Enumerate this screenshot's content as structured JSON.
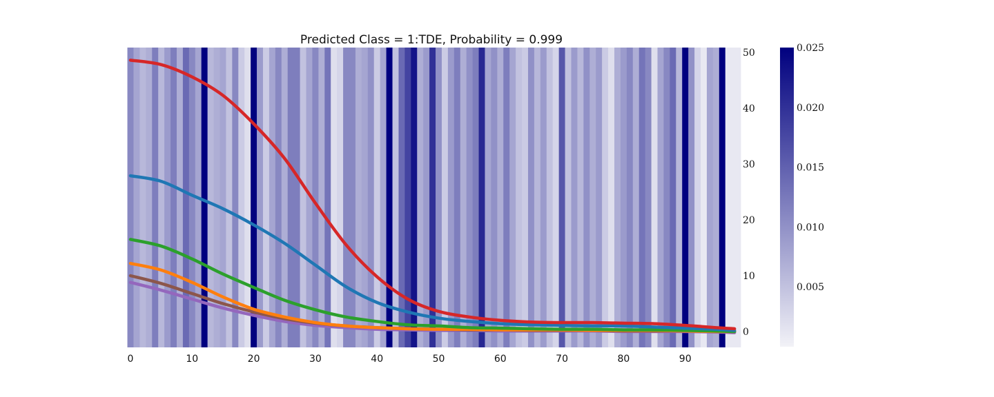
{
  "chart_data": {
    "type": "line",
    "title": "Predicted Class = 1:TDE, Probability = 0.999",
    "xlabel": "",
    "ylabel": "",
    "xlim": [
      -1,
      99
    ],
    "ylim": [
      -2.8,
      51
    ],
    "x_ticks": [
      0,
      10,
      20,
      30,
      40,
      50,
      60,
      70,
      80,
      90
    ],
    "y_ticks": [
      0,
      10,
      20,
      30,
      40,
      50
    ],
    "y_axis_side": "right",
    "grid": false,
    "legend": "none",
    "background_heatmap": {
      "description": "per-timestep attention weights shown as vertical bands",
      "colormap": "white-to-navy",
      "colormap_colors": [
        "#f2f2f7",
        "#00007f"
      ],
      "vmin": 0.0,
      "vmax": 0.025,
      "x_start": 0,
      "values": [
        0.011,
        0.008,
        0.006,
        0.007,
        0.012,
        0.006,
        0.009,
        0.012,
        0.007,
        0.014,
        0.011,
        0.008,
        0.025,
        0.006,
        0.007,
        0.008,
        0.005,
        0.011,
        0.004,
        0.002,
        0.025,
        0.009,
        0.004,
        0.008,
        0.011,
        0.007,
        0.012,
        0.012,
        0.005,
        0.008,
        0.011,
        0.007,
        0.013,
        0.002,
        0.003,
        0.011,
        0.011,
        0.007,
        0.008,
        0.01,
        0.004,
        0.008,
        0.025,
        0.005,
        0.014,
        0.018,
        0.023,
        0.007,
        0.009,
        0.02,
        0.01,
        0.004,
        0.009,
        0.012,
        0.007,
        0.01,
        0.012,
        0.021,
        0.008,
        0.01,
        0.007,
        0.012,
        0.008,
        0.005,
        0.004,
        0.01,
        0.006,
        0.009,
        0.005,
        0.003,
        0.016,
        0.005,
        0.009,
        0.006,
        0.01,
        0.007,
        0.009,
        0.004,
        0.002,
        0.007,
        0.009,
        0.011,
        0.007,
        0.013,
        0.011,
        0.002,
        0.008,
        0.011,
        0.014,
        0.006,
        0.025,
        0.01,
        0.003,
        0.001,
        0.008,
        0.007,
        0.025,
        0.001,
        0.001,
        0.001
      ]
    },
    "colorbar": {
      "ticks": [
        0.005,
        0.01,
        0.015,
        0.02,
        0.025
      ],
      "tick_labels": [
        "0.005",
        "0.010",
        "0.015",
        "0.020",
        "0.025"
      ]
    },
    "x": [
      0,
      5,
      10,
      15,
      20,
      25,
      30,
      35,
      40,
      45,
      50,
      55,
      60,
      65,
      70,
      75,
      80,
      85,
      90,
      95,
      98
    ],
    "series": [
      {
        "color": "#d62728",
        "values": [
          48.6,
          47.8,
          45.6,
          42.3,
          37.2,
          31.0,
          23.0,
          15.5,
          9.8,
          5.8,
          3.6,
          2.6,
          2.0,
          1.7,
          1.6,
          1.6,
          1.5,
          1.4,
          1.1,
          0.7,
          0.5
        ]
      },
      {
        "color": "#1f77b4",
        "values": [
          27.9,
          26.9,
          24.4,
          22.0,
          19.1,
          15.8,
          11.9,
          8.0,
          5.2,
          3.5,
          2.4,
          1.8,
          1.4,
          1.2,
          1.1,
          1.0,
          1.0,
          0.8,
          0.6,
          0.4,
          0.2
        ]
      },
      {
        "color": "#2ca02c",
        "values": [
          16.5,
          15.3,
          13.0,
          10.3,
          7.9,
          5.6,
          3.9,
          2.6,
          1.8,
          1.2,
          1.0,
          0.7,
          0.6,
          0.5,
          0.4,
          0.4,
          0.3,
          0.3,
          0.2,
          0.1,
          0.0
        ]
      },
      {
        "color": "#ff7f0e",
        "values": [
          12.2,
          11.0,
          8.8,
          6.2,
          4.0,
          2.6,
          1.6,
          1.0,
          0.7,
          0.5,
          0.4,
          0.4,
          0.3,
          0.3,
          0.3,
          0.2,
          0.2,
          0.2,
          0.1,
          0.0,
          0.0
        ]
      },
      {
        "color": "#8c564b",
        "values": [
          10.0,
          8.6,
          6.8,
          5.0,
          3.5,
          2.3,
          1.5,
          1.0,
          0.7,
          0.5,
          0.4,
          0.3,
          0.3,
          0.2,
          0.2,
          0.2,
          0.1,
          0.1,
          0.1,
          0.0,
          0.0
        ]
      },
      {
        "color": "#9467bd",
        "values": [
          8.8,
          7.4,
          5.8,
          4.2,
          2.9,
          1.8,
          1.1,
          0.7,
          0.4,
          0.3,
          0.2,
          0.2,
          0.1,
          0.1,
          0.1,
          0.1,
          0.0,
          0.0,
          0.0,
          -0.1,
          -0.2
        ]
      }
    ]
  }
}
